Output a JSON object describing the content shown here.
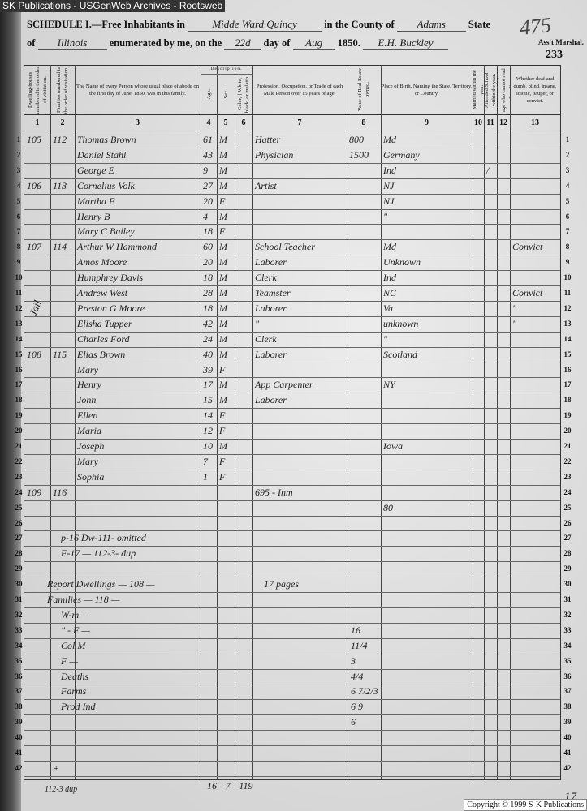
{
  "source_bar": "SK Publications - USGenWeb Archives - Rootsweb",
  "header": {
    "schedule_prefix": "SCHEDULE I.—Free Inhabitants in",
    "place": "Midde Ward Quincy",
    "county_prefix": "in the County of",
    "county": "Adams",
    "state_label": "State",
    "of_label": "of",
    "state": "Illinois",
    "enumerated_label": "enumerated by me, on the",
    "day": "22d",
    "day_of_label": "day of",
    "month": "Aug",
    "year": "1850.",
    "marshal_signature": "E.H. Buckley",
    "marshal_label": "Ass't Marshal.",
    "stamp_number": "475",
    "page_number": "233"
  },
  "columns": [
    {
      "num": "1",
      "label": "Dwelling-houses numbered in the order of visitation."
    },
    {
      "num": "2",
      "label": "Families numbered in the order of visitation."
    },
    {
      "num": "3",
      "label": "The Name of every Person whose usual place of abode on the first day of June, 1850, was in this family."
    },
    {
      "num": "4",
      "label": "Age."
    },
    {
      "num": "5",
      "label": "Sex."
    },
    {
      "num": "6",
      "label": "Color, { White, black, or mulatto."
    },
    {
      "num": "7",
      "label": "Profession, Occupation, or Trade of each Male Person over 15 years of age."
    },
    {
      "num": "8",
      "label": "Value of Real Estate owned."
    },
    {
      "num": "9",
      "label": "Place of Birth. Naming the State, Territory, or Country."
    },
    {
      "num": "10",
      "label": "Married within the year."
    },
    {
      "num": "11",
      "label": "Attended School within the year."
    },
    {
      "num": "12",
      "label": "Persons over 20 y'rs of age who cannot read & write."
    },
    {
      "num": "13",
      "label": "Whether deaf and dumb, blind, insane, idiotic, pauper, or convict."
    }
  ],
  "description_label": "Description.",
  "rows": [
    {
      "n": "1",
      "dwelling": "105",
      "family": "112",
      "name": "Thomas Brown",
      "age": "61",
      "sex": "M",
      "occupation": "Hatter",
      "real_estate": "800",
      "birthplace": "Md"
    },
    {
      "n": "2",
      "name": "Daniel Stahl",
      "age": "43",
      "sex": "M",
      "occupation": "Physician",
      "real_estate": "1500",
      "birthplace": "Germany"
    },
    {
      "n": "3",
      "name": "George E",
      "age": "9",
      "sex": "M",
      "birthplace": "Ind",
      "c11": "/"
    },
    {
      "n": "4",
      "dwelling": "106",
      "family": "113",
      "name": "Cornelius Volk",
      "age": "27",
      "sex": "M",
      "occupation": "Artist",
      "birthplace": "NJ"
    },
    {
      "n": "5",
      "name": "Martha F",
      "age": "20",
      "sex": "F",
      "birthplace": "NJ"
    },
    {
      "n": "6",
      "name": "Henry B",
      "age": "4",
      "sex": "M",
      "birthplace": "\""
    },
    {
      "n": "7",
      "name": "Mary C Bailey",
      "age": "18",
      "sex": "F"
    },
    {
      "n": "8",
      "dwelling": "107",
      "family": "114",
      "name": "Arthur W Hammond",
      "age": "60",
      "sex": "M",
      "occupation": "School Teacher",
      "birthplace": "Md",
      "c13": "Convict"
    },
    {
      "n": "9",
      "name": "Amos Moore",
      "age": "20",
      "sex": "M",
      "occupation": "Laborer",
      "birthplace": "Unknown"
    },
    {
      "n": "10",
      "name": "Humphrey Davis",
      "age": "18",
      "sex": "M",
      "occupation": "Clerk",
      "birthplace": "Ind"
    },
    {
      "n": "11",
      "name": "Andrew West",
      "age": "28",
      "sex": "M",
      "occupation": "Teamster",
      "birthplace": "NC",
      "c13": "Convict"
    },
    {
      "n": "12",
      "name": "Preston G Moore",
      "age": "18",
      "sex": "M",
      "occupation": "Laborer",
      "birthplace": "Va",
      "c13": "\""
    },
    {
      "n": "13",
      "name": "Elisha Tupper",
      "age": "42",
      "sex": "M",
      "occupation": "\"",
      "birthplace": "unknown",
      "c13": "\""
    },
    {
      "n": "14",
      "name": "Charles Ford",
      "age": "24",
      "sex": "M",
      "occupation": "Clerk",
      "birthplace": "\""
    },
    {
      "n": "15",
      "dwelling": "108",
      "family": "115",
      "name": "Elias Brown",
      "age": "40",
      "sex": "M",
      "occupation": "Laborer",
      "birthplace": "Scotland"
    },
    {
      "n": "16",
      "name": "Mary",
      "age": "39",
      "sex": "F"
    },
    {
      "n": "17",
      "name": "Henry",
      "age": "17",
      "sex": "M",
      "occupation": "App Carpenter",
      "birthplace": "NY"
    },
    {
      "n": "18",
      "name": "John",
      "age": "15",
      "sex": "M",
      "occupation": "Laborer"
    },
    {
      "n": "19",
      "name": "Ellen",
      "age": "14",
      "sex": "F"
    },
    {
      "n": "20",
      "name": "Maria",
      "age": "12",
      "sex": "F"
    },
    {
      "n": "21",
      "name": "Joseph",
      "age": "10",
      "sex": "M",
      "birthplace": "Iowa"
    },
    {
      "n": "22",
      "name": "Mary",
      "age": "7",
      "sex": "F"
    },
    {
      "n": "23",
      "name": "Sophia",
      "age": "1",
      "sex": "F"
    },
    {
      "n": "24",
      "dwelling": "109",
      "family": "116",
      "occupation": "695 - Inm"
    },
    {
      "n": "25",
      "birthplace": "80"
    },
    {
      "n": "26"
    },
    {
      "n": "27",
      "name": "p-16 Dw-111- omitted"
    },
    {
      "n": "28",
      "name": "F-17 — 112-3- dup"
    },
    {
      "n": "29"
    },
    {
      "n": "30",
      "name": "Report Dwellings — 108 —",
      "occupation": "17 pages"
    },
    {
      "n": "31",
      "name": "Families — 118 —"
    },
    {
      "n": "32",
      "name": "W-m —"
    },
    {
      "n": "33",
      "name": "\" - F —",
      "real_estate": "16"
    },
    {
      "n": "34",
      "name": "Col M",
      "real_estate": "11/4"
    },
    {
      "n": "35",
      "name": "F —",
      "real_estate": "3"
    },
    {
      "n": "36",
      "name": "Deaths",
      "real_estate": "4/4"
    },
    {
      "n": "37",
      "name": "Farms",
      "real_estate": "6 7/2/3"
    },
    {
      "n": "38",
      "name": "Prod Ind",
      "real_estate": "6 9"
    },
    {
      "n": "39",
      "real_estate": "6"
    },
    {
      "n": "40"
    },
    {
      "n": "41"
    },
    {
      "n": "42",
      "family": "+"
    }
  ],
  "margin_note": "Jail",
  "footer": {
    "left_note": "112-3 dup",
    "center_note": "16—7—119",
    "sheet_number": "17",
    "copyright": "Copyright © 1999 S-K Publications"
  }
}
